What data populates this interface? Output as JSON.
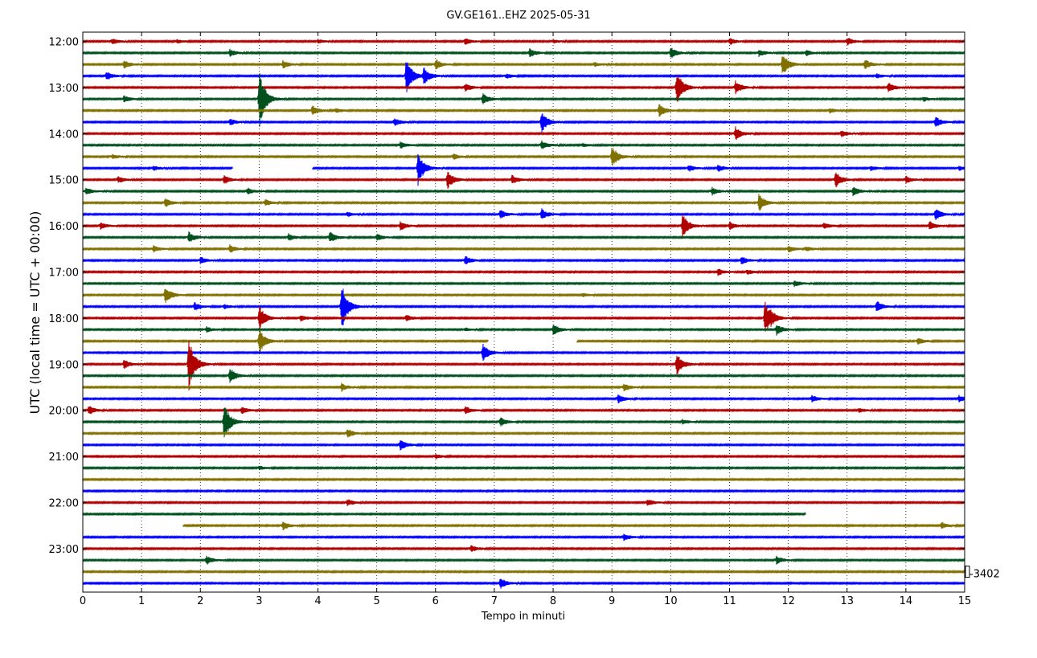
{
  "chart_data": {
    "type": "line",
    "title": "GV.GE161..EHZ 2025-05-31",
    "xlabel": "Tempo in minuti",
    "ylabel": "UTC (local time = UTC + 00:00)",
    "xlim": [
      0,
      15
    ],
    "x_ticks": [
      "0",
      "1",
      "2",
      "3",
      "4",
      "5",
      "6",
      "7",
      "8",
      "9",
      "10",
      "11",
      "12",
      "13",
      "14",
      "15"
    ],
    "start_time": "12:00",
    "minutes_per_line": 15,
    "hour_labels": [
      "12:00",
      "13:00",
      "14:00",
      "15:00",
      "16:00",
      "17:00",
      "18:00",
      "19:00",
      "20:00",
      "21:00",
      "22:00",
      "23:00"
    ],
    "scale_label": "3402",
    "grid": "vertical dotted",
    "colors": [
      "#b00000",
      "#00501e",
      "#807000",
      "#0000ff"
    ],
    "traces": [
      {
        "time": "12:00",
        "events": [
          [
            0.5,
            0.25
          ],
          [
            1.6,
            0.15
          ],
          [
            4.0,
            0.15
          ],
          [
            6.5,
            0.3
          ],
          [
            8.0,
            0.15
          ],
          [
            11.0,
            0.3
          ],
          [
            13.0,
            0.35
          ]
        ]
      },
      {
        "time": "12:15",
        "events": [
          [
            2.5,
            0.3
          ],
          [
            7.6,
            0.4
          ],
          [
            10.0,
            0.5
          ],
          [
            11.5,
            0.3
          ],
          [
            12.3,
            0.25
          ]
        ]
      },
      {
        "time": "12:30",
        "events": [
          [
            0.7,
            0.35
          ],
          [
            3.4,
            0.35
          ],
          [
            6.0,
            0.45
          ],
          [
            8.7,
            0.2
          ],
          [
            11.9,
            1.0
          ],
          [
            13.3,
            0.45
          ]
        ]
      },
      {
        "time": "12:45",
        "events": [
          [
            0.4,
            0.4
          ],
          [
            5.5,
            1.7
          ],
          [
            5.8,
            0.7
          ],
          [
            7.2,
            0.2
          ],
          [
            13.5,
            0.2
          ]
        ]
      },
      {
        "time": "13:00",
        "events": [
          [
            6.5,
            0.35
          ],
          [
            10.1,
            1.6
          ],
          [
            11.1,
            0.6
          ],
          [
            13.7,
            0.45
          ]
        ]
      },
      {
        "time": "13:15",
        "events": [
          [
            0.7,
            0.3
          ],
          [
            3.0,
            2.7
          ],
          [
            6.8,
            0.5
          ],
          [
            14.3,
            0.2
          ]
        ]
      },
      {
        "time": "13:30",
        "events": [
          [
            3.9,
            0.45
          ],
          [
            4.3,
            0.2
          ],
          [
            9.8,
            0.6
          ],
          [
            12.7,
            0.2
          ]
        ]
      },
      {
        "time": "13:45",
        "events": [
          [
            2.5,
            0.3
          ],
          [
            5.3,
            0.35
          ],
          [
            7.8,
            1.0
          ],
          [
            14.5,
            0.5
          ]
        ]
      },
      {
        "time": "14:00",
        "events": [
          [
            11.1,
            0.6
          ],
          [
            12.9,
            0.3
          ]
        ]
      },
      {
        "time": "14:15",
        "events": [
          [
            5.4,
            0.3
          ],
          [
            7.8,
            0.4
          ],
          [
            8.5,
            0.15
          ]
        ]
      },
      {
        "time": "14:30",
        "events": [
          [
            0.5,
            0.2
          ],
          [
            6.3,
            0.25
          ],
          [
            9.0,
            1.0
          ]
        ]
      },
      {
        "time": "14:45",
        "events": [
          [
            1.2,
            0.2
          ],
          [
            5.7,
            1.5
          ],
          [
            10.3,
            0.3
          ],
          [
            10.8,
            0.3
          ],
          [
            13.4,
            0.2
          ],
          [
            14.9,
            0.2
          ]
        ]
      },
      {
        "time": "15:00",
        "events": [
          [
            0.6,
            0.3
          ],
          [
            2.4,
            0.4
          ],
          [
            6.2,
            0.8
          ],
          [
            7.3,
            0.4
          ],
          [
            12.8,
            0.75
          ],
          [
            14.0,
            0.3
          ]
        ]
      },
      {
        "time": "15:15",
        "events": [
          [
            0.05,
            0.3
          ],
          [
            2.8,
            0.3
          ],
          [
            10.7,
            0.35
          ],
          [
            13.1,
            0.4
          ]
        ]
      },
      {
        "time": "15:30",
        "events": [
          [
            1.4,
            0.4
          ],
          [
            3.1,
            0.3
          ],
          [
            11.5,
            0.8
          ]
        ]
      },
      {
        "time": "15:45",
        "events": [
          [
            4.5,
            0.2
          ],
          [
            7.1,
            0.4
          ],
          [
            7.8,
            0.5
          ],
          [
            14.5,
            0.5
          ]
        ]
      },
      {
        "time": "16:00",
        "events": [
          [
            0.3,
            0.3
          ],
          [
            5.4,
            0.4
          ],
          [
            10.2,
            1.1
          ],
          [
            11.0,
            0.35
          ],
          [
            12.6,
            0.3
          ],
          [
            14.4,
            0.4
          ]
        ]
      },
      {
        "time": "16:15",
        "events": [
          [
            1.8,
            0.5
          ],
          [
            3.5,
            0.3
          ],
          [
            4.2,
            0.5
          ],
          [
            5.0,
            0.3
          ]
        ]
      },
      {
        "time": "16:30",
        "events": [
          [
            1.2,
            0.3
          ],
          [
            2.5,
            0.35
          ],
          [
            12.0,
            0.3
          ],
          [
            12.3,
            0.2
          ]
        ]
      },
      {
        "time": "16:45",
        "events": [
          [
            2.0,
            0.3
          ],
          [
            6.5,
            0.4
          ],
          [
            11.2,
            0.35
          ],
          [
            15.0,
            0.3
          ]
        ]
      },
      {
        "time": "17:00",
        "events": [
          [
            10.8,
            0.3
          ],
          [
            11.3,
            0.2
          ]
        ]
      },
      {
        "time": "17:15",
        "events": [
          [
            12.1,
            0.3
          ]
        ]
      },
      {
        "time": "17:30",
        "events": [
          [
            1.4,
            0.8
          ],
          [
            8.5,
            0.15
          ]
        ]
      },
      {
        "time": "17:45",
        "events": [
          [
            1.9,
            0.35
          ],
          [
            2.4,
            0.2
          ],
          [
            4.4,
            2.2
          ],
          [
            13.5,
            0.5
          ]
        ]
      },
      {
        "time": "18:00",
        "events": [
          [
            3.0,
            1.1
          ],
          [
            3.7,
            0.3
          ],
          [
            5.5,
            0.3
          ],
          [
            11.6,
            1.5
          ],
          [
            11.7,
            0.3
          ]
        ]
      },
      {
        "time": "18:15",
        "events": [
          [
            2.1,
            0.25
          ],
          [
            6.5,
            0.15
          ],
          [
            8.0,
            0.5
          ],
          [
            11.8,
            0.5
          ]
        ]
      },
      {
        "time": "18:30",
        "events": [
          [
            3.0,
            1.1
          ],
          [
            14.2,
            0.3
          ]
        ]
      },
      {
        "time": "18:45",
        "events": [
          [
            6.8,
            0.8
          ]
        ]
      },
      {
        "time": "19:00",
        "events": [
          [
            0.7,
            0.4
          ],
          [
            1.8,
            2.5
          ],
          [
            10.1,
            1.0
          ]
        ]
      },
      {
        "time": "19:15",
        "events": [
          [
            2.5,
            0.7
          ]
        ]
      },
      {
        "time": "19:30",
        "events": [
          [
            4.4,
            0.35
          ],
          [
            9.2,
            0.35
          ]
        ]
      },
      {
        "time": "19:45",
        "events": [
          [
            9.1,
            0.4
          ],
          [
            12.4,
            0.3
          ],
          [
            14.9,
            0.3
          ]
        ]
      },
      {
        "time": "20:00",
        "events": [
          [
            0.1,
            0.4
          ],
          [
            2.7,
            0.3
          ],
          [
            6.5,
            0.35
          ],
          [
            13.2,
            0.2
          ]
        ]
      },
      {
        "time": "20:15",
        "events": [
          [
            2.4,
            1.8
          ],
          [
            7.1,
            0.4
          ],
          [
            10.2,
            0.2
          ]
        ]
      },
      {
        "time": "20:30",
        "events": [
          [
            4.5,
            0.4
          ]
        ]
      },
      {
        "time": "20:45",
        "events": [
          [
            5.4,
            0.5
          ]
        ]
      },
      {
        "time": "21:00",
        "events": [
          [
            6.0,
            0.2
          ]
        ]
      },
      {
        "time": "21:15",
        "events": [
          [
            3.0,
            0.15
          ]
        ]
      },
      {
        "time": "21:30",
        "events": []
      },
      {
        "time": "21:45",
        "events": []
      },
      {
        "time": "22:00",
        "events": [
          [
            4.5,
            0.3
          ],
          [
            9.6,
            0.3
          ]
        ]
      },
      {
        "time": "22:15",
        "events": []
      },
      {
        "time": "22:30",
        "events": [
          [
            3.4,
            0.4
          ],
          [
            14.6,
            0.3
          ]
        ]
      },
      {
        "time": "22:45",
        "events": [
          [
            9.2,
            0.3
          ]
        ]
      },
      {
        "time": "23:00",
        "events": [
          [
            6.6,
            0.3
          ]
        ]
      },
      {
        "time": "23:15",
        "events": [
          [
            2.1,
            0.4
          ],
          [
            11.8,
            0.35
          ]
        ]
      },
      {
        "time": "23:30",
        "events": []
      },
      {
        "time": "23:45",
        "events": [
          [
            7.1,
            0.5
          ]
        ]
      }
    ],
    "gaps": [
      {
        "time": "14:45",
        "from": 2.55,
        "to": 3.9
      },
      {
        "time": "18:30",
        "from": 6.9,
        "to": 8.4
      },
      {
        "time": "22:15",
        "from": 12.3,
        "to": 15.0
      },
      {
        "time": "22:30",
        "from": 0.0,
        "to": 1.7
      }
    ]
  }
}
